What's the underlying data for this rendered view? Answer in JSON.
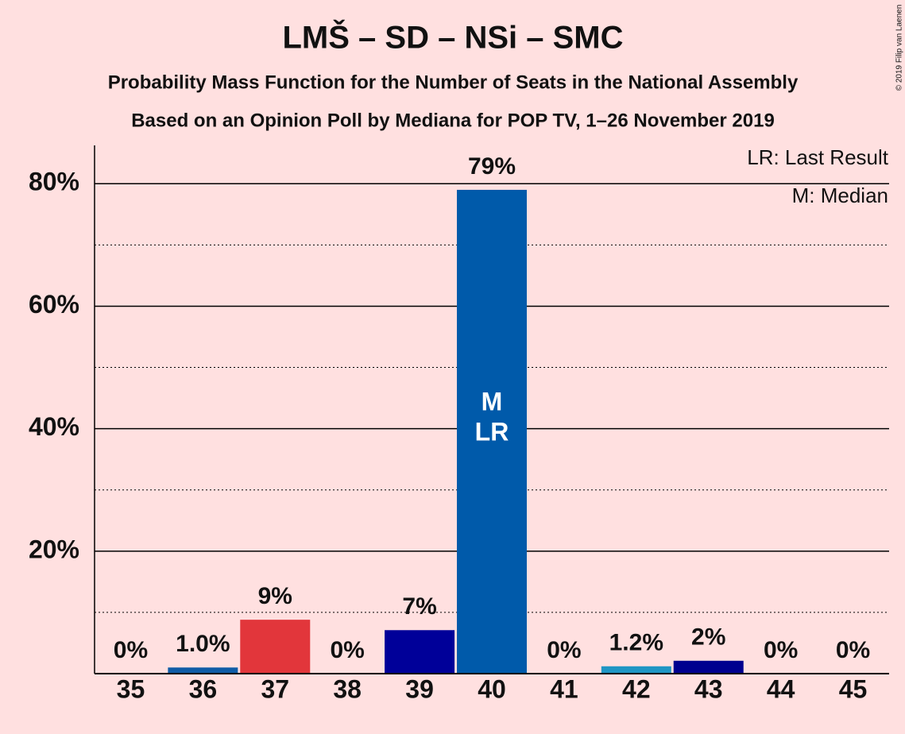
{
  "chart_data": {
    "type": "bar",
    "title": "LMŠ – SD – NSi – SMC",
    "subtitle": "Probability Mass Function for the Number of Seats in the National Assembly",
    "subtitle2": "Based on an Opinion Poll by Mediana for POP TV, 1–26 November 2019",
    "categories": [
      35,
      36,
      37,
      38,
      39,
      40,
      41,
      42,
      43,
      44,
      45
    ],
    "values": [
      0,
      1.0,
      8.8,
      0,
      7.1,
      79,
      0,
      1.2,
      2.1,
      0,
      0
    ],
    "value_labels": [
      "0%",
      "1.0%",
      "9%",
      "0%",
      "7%",
      "79%",
      "0%",
      "1.2%",
      "2%",
      "0%",
      "0%"
    ],
    "colors": [
      "#0f5ca6",
      "#0f5ca6",
      "#e2363b",
      "#000099",
      "#000099",
      "#005aaa",
      "#005aaa",
      "#1f96c4",
      "#00008f",
      "#00008f",
      "#00008f"
    ],
    "ylim": [
      0,
      86
    ],
    "yticks": [
      {
        "value": 20,
        "label": "20%"
      },
      {
        "value": 40,
        "label": "40%"
      },
      {
        "value": 60,
        "label": "60%"
      },
      {
        "value": 80,
        "label": "80%"
      }
    ],
    "minor_yticks": [
      10,
      30,
      50,
      70
    ],
    "grid": true,
    "median": 40,
    "median_label": "M",
    "last_result": 40,
    "last_result_label": "LR",
    "legend": [
      "LR: Last Result",
      "M: Median"
    ],
    "credit": "© 2019 Filip van Laenen"
  }
}
